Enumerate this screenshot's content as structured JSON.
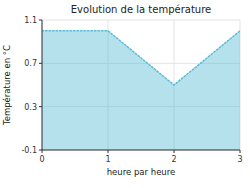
{
  "chart_data": {
    "type": "area",
    "title": "Evolution de la température",
    "x_label": "heure par heure",
    "y_label": "Température en °C",
    "x": [
      0,
      1,
      2,
      3
    ],
    "values": [
      1.0,
      1.0,
      0.5,
      1.0
    ],
    "xlim": [
      0,
      3
    ],
    "ylim": [
      -0.1,
      1.1
    ],
    "xticks": [
      0,
      1,
      2,
      3
    ],
    "yticks": [
      -0.1,
      0.3,
      0.7,
      1.1
    ],
    "color": "#5bbcd6",
    "line_style": "dotted",
    "grid": true
  }
}
